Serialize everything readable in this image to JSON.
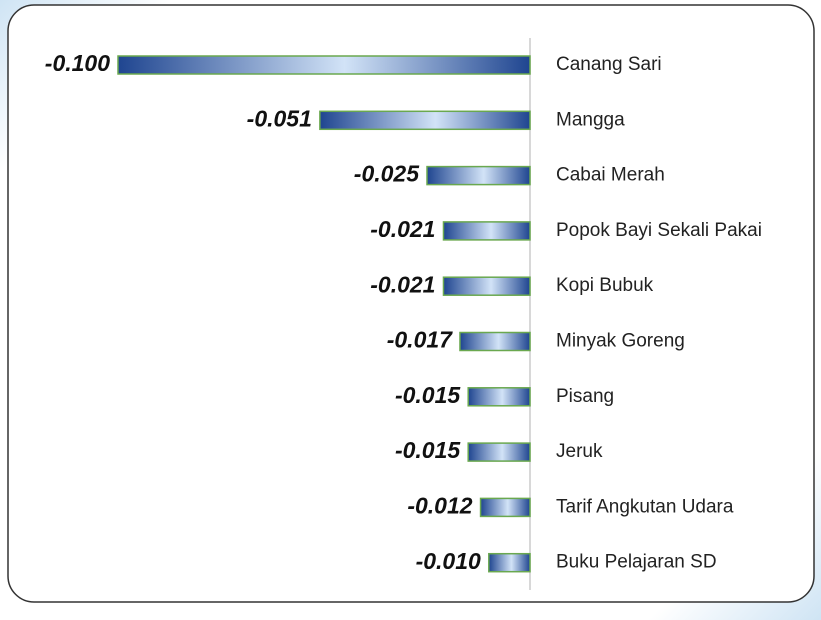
{
  "chart_data": {
    "type": "hbar",
    "categories": [
      "Canang Sari",
      "Mangga",
      "Cabai Merah",
      "Popok Bayi Sekali Pakai",
      "Kopi Bubuk",
      "Minyak Goreng",
      "Pisang",
      "Jeruk",
      "Tarif Angkutan Udara",
      "Buku Pelajaran SD"
    ],
    "values": [
      -0.1,
      -0.051,
      -0.025,
      -0.021,
      -0.021,
      -0.017,
      -0.015,
      -0.015,
      -0.012,
      -0.01
    ],
    "value_labels": [
      "-0.100",
      "-0.051",
      "-0.025",
      "-0.021",
      "-0.021",
      "-0.017",
      "-0.015",
      "-0.015",
      "-0.012",
      "-0.010"
    ],
    "color": "#1f4590",
    "xlim": [
      -0.1,
      0
    ]
  }
}
